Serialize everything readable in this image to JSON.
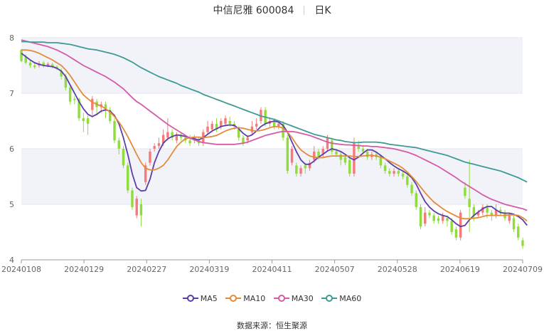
{
  "header": {
    "title": "中信尼雅 600084",
    "period": "日K"
  },
  "source": {
    "label": "数据来源：",
    "value": "恒生聚源"
  },
  "colors": {
    "up": "#f57a7a",
    "down": "#8fdc3c",
    "ma5": "#5b3ea8",
    "ma10": "#e38b3a",
    "ma30": "#d55aa8",
    "ma60": "#3f9a95",
    "band": "#f2f3f9"
  },
  "chart_data": {
    "type": "candlestick",
    "ylim": [
      4,
      8
    ],
    "yticks": [
      "4",
      "5",
      "6",
      "7",
      "8"
    ],
    "xticks": [
      "20240108",
      "20240129",
      "20240227",
      "20240319",
      "20240411",
      "20240507",
      "20240528",
      "20240619",
      "20240709"
    ],
    "candles": [
      [
        7.78,
        7.58,
        7.8,
        7.56
      ],
      [
        7.65,
        7.55,
        7.7,
        7.52
      ],
      [
        7.55,
        7.5,
        7.6,
        7.46
      ],
      [
        7.5,
        7.47,
        7.55,
        7.44
      ],
      [
        7.5,
        7.54,
        7.58,
        7.46
      ],
      [
        7.55,
        7.5,
        7.58,
        7.46
      ],
      [
        7.5,
        7.53,
        7.56,
        7.47
      ],
      [
        7.52,
        7.48,
        7.55,
        7.45
      ],
      [
        7.48,
        7.45,
        7.5,
        7.42
      ],
      [
        7.4,
        7.3,
        7.45,
        7.25
      ],
      [
        7.3,
        7.1,
        7.35,
        7.05
      ],
      [
        7.1,
        6.85,
        7.15,
        6.8
      ],
      [
        6.9,
        6.88,
        6.95,
        6.8
      ],
      [
        6.9,
        6.55,
        6.92,
        6.5
      ],
      [
        6.55,
        6.5,
        6.65,
        6.3
      ],
      [
        6.55,
        6.45,
        6.6,
        6.25
      ],
      [
        6.7,
        6.9,
        6.95,
        6.6
      ],
      [
        6.85,
        6.75,
        6.9,
        6.6
      ],
      [
        6.75,
        6.8,
        6.85,
        6.65
      ],
      [
        6.8,
        6.7,
        6.85,
        6.55
      ],
      [
        6.7,
        6.5,
        6.75,
        6.45
      ],
      [
        6.5,
        6.15,
        6.55,
        6.1
      ],
      [
        6.15,
        6.0,
        6.2,
        5.9
      ],
      [
        6.0,
        5.7,
        6.05,
        5.65
      ],
      [
        5.7,
        5.25,
        5.75,
        5.2
      ],
      [
        5.25,
        4.95,
        5.3,
        4.9
      ],
      [
        4.8,
        5.1,
        5.15,
        4.75
      ],
      [
        5.0,
        4.8,
        5.1,
        4.6
      ],
      [
        5.4,
        5.7,
        5.75,
        5.35
      ],
      [
        5.75,
        5.95,
        6.0,
        5.7
      ],
      [
        6.0,
        6.05,
        6.1,
        5.95
      ],
      [
        6.05,
        6.1,
        6.2,
        6.0
      ],
      [
        6.1,
        6.25,
        6.35,
        6.05
      ],
      [
        6.2,
        6.3,
        6.55,
        6.15
      ],
      [
        6.3,
        6.2,
        6.35,
        6.15
      ],
      [
        6.15,
        6.25,
        6.3,
        6.1
      ],
      [
        6.25,
        6.2,
        6.3,
        6.15
      ],
      [
        6.2,
        6.15,
        6.25,
        6.1
      ],
      [
        6.15,
        6.1,
        6.25,
        6.05
      ],
      [
        6.15,
        6.2,
        6.25,
        6.1
      ],
      [
        6.15,
        6.1,
        6.2,
        6.05
      ],
      [
        6.1,
        6.3,
        6.35,
        6.05
      ],
      [
        6.3,
        6.4,
        6.5,
        6.25
      ],
      [
        6.35,
        6.45,
        6.5,
        6.3
      ],
      [
        6.45,
        6.35,
        6.55,
        6.3
      ],
      [
        6.4,
        6.5,
        6.55,
        6.35
      ],
      [
        6.45,
        6.55,
        6.6,
        6.4
      ],
      [
        6.5,
        6.45,
        6.58,
        6.4
      ],
      [
        6.45,
        6.4,
        6.5,
        6.35
      ],
      [
        6.35,
        6.2,
        6.4,
        6.15
      ],
      [
        6.2,
        6.1,
        6.25,
        6.05
      ],
      [
        6.15,
        6.2,
        6.25,
        6.1
      ],
      [
        6.3,
        6.4,
        6.5,
        6.25
      ],
      [
        6.4,
        6.45,
        6.55,
        6.35
      ],
      [
        6.5,
        6.7,
        6.75,
        6.45
      ],
      [
        6.7,
        6.45,
        6.75,
        6.4
      ],
      [
        6.45,
        6.5,
        6.55,
        6.4
      ],
      [
        6.5,
        6.4,
        6.55,
        6.35
      ],
      [
        6.4,
        6.45,
        6.5,
        6.35
      ],
      [
        6.45,
        6.2,
        6.5,
        6.15
      ],
      [
        6.2,
        5.6,
        6.25,
        5.55
      ],
      [
        5.75,
        6.0,
        6.05,
        5.7
      ],
      [
        5.7,
        5.55,
        5.75,
        5.5
      ],
      [
        5.55,
        5.65,
        5.7,
        5.5
      ],
      [
        5.7,
        5.65,
        5.75,
        5.55
      ],
      [
        5.65,
        5.75,
        5.8,
        5.6
      ],
      [
        5.8,
        5.95,
        6.05,
        5.75
      ],
      [
        5.95,
        5.85,
        6.0,
        5.8
      ],
      [
        5.9,
        6.0,
        6.05,
        5.85
      ],
      [
        6.0,
        6.2,
        6.25,
        5.95
      ],
      [
        6.15,
        5.95,
        6.2,
        5.9
      ],
      [
        5.95,
        5.9,
        6.0,
        5.85
      ],
      [
        5.9,
        5.8,
        5.95,
        5.7
      ],
      [
        5.85,
        5.75,
        5.9,
        5.7
      ],
      [
        5.8,
        5.55,
        5.85,
        5.5
      ],
      [
        5.55,
        6.1,
        6.2,
        5.5
      ],
      [
        6.05,
        6.0,
        6.15,
        5.95
      ],
      [
        6.0,
        5.95,
        6.05,
        5.9
      ],
      [
        5.95,
        5.85,
        6.0,
        5.8
      ],
      [
        5.85,
        5.9,
        5.95,
        5.8
      ],
      [
        5.9,
        5.85,
        5.95,
        5.8
      ],
      [
        5.85,
        5.7,
        5.9,
        5.65
      ],
      [
        5.7,
        5.6,
        5.75,
        5.55
      ],
      [
        5.6,
        5.55,
        5.65,
        5.5
      ],
      [
        5.55,
        5.6,
        5.65,
        5.5
      ],
      [
        5.6,
        5.55,
        5.65,
        5.5
      ],
      [
        5.55,
        5.5,
        5.6,
        5.45
      ],
      [
        5.5,
        5.35,
        5.55,
        5.3
      ],
      [
        5.35,
        5.2,
        5.4,
        5.15
      ],
      [
        5.2,
        4.95,
        5.25,
        4.9
      ],
      [
        4.95,
        4.6,
        5.0,
        4.55
      ],
      [
        4.65,
        4.85,
        4.95,
        4.6
      ],
      [
        4.85,
        4.8,
        4.9,
        4.75
      ],
      [
        4.8,
        4.7,
        4.85,
        4.65
      ],
      [
        4.75,
        4.7,
        4.8,
        4.65
      ],
      [
        4.7,
        4.8,
        4.85,
        4.65
      ],
      [
        4.75,
        4.7,
        4.8,
        4.6
      ],
      [
        4.7,
        4.5,
        4.75,
        4.45
      ],
      [
        4.55,
        4.4,
        4.6,
        4.35
      ],
      [
        4.4,
        4.85,
        4.9,
        4.35
      ],
      [
        5.3,
        5.15,
        5.4,
        5.1
      ],
      [
        5.1,
        4.95,
        5.8,
        4.5
      ],
      [
        4.95,
        4.8,
        5.0,
        4.7
      ],
      [
        4.8,
        4.85,
        4.9,
        4.75
      ],
      [
        4.85,
        4.95,
        5.0,
        4.8
      ],
      [
        4.95,
        4.85,
        5.0,
        4.75
      ],
      [
        4.85,
        4.8,
        4.9,
        4.7
      ],
      [
        4.8,
        4.9,
        5.0,
        4.75
      ],
      [
        4.9,
        4.85,
        4.95,
        4.8
      ],
      [
        4.85,
        4.75,
        4.9,
        4.7
      ],
      [
        4.7,
        4.8,
        4.85,
        4.65
      ],
      [
        4.75,
        4.55,
        4.8,
        4.5
      ],
      [
        4.6,
        4.4,
        4.65,
        4.35
      ],
      [
        4.35,
        4.25,
        4.4,
        4.2
      ]
    ],
    "series": [
      {
        "name": "MA5",
        "color": "#5b3ea8",
        "values": [
          7.72,
          7.66,
          7.6,
          7.55,
          7.52,
          7.5,
          7.49,
          7.48,
          7.45,
          7.4,
          7.3,
          7.15,
          7.0,
          6.85,
          6.72,
          6.62,
          6.58,
          6.62,
          6.68,
          6.7,
          6.68,
          6.6,
          6.45,
          6.2,
          5.9,
          5.55,
          5.3,
          5.24,
          5.25,
          5.45,
          5.75,
          5.95,
          6.1,
          6.18,
          6.22,
          6.25,
          6.24,
          6.22,
          6.2,
          6.18,
          6.16,
          6.2,
          6.26,
          6.32,
          6.36,
          6.4,
          6.42,
          6.43,
          6.42,
          6.36,
          6.28,
          6.22,
          6.25,
          6.32,
          6.4,
          6.45,
          6.48,
          6.5,
          6.48,
          6.42,
          6.3,
          6.12,
          5.95,
          5.8,
          5.72,
          5.72,
          5.78,
          5.85,
          5.9,
          5.96,
          6.0,
          5.98,
          5.95,
          5.9,
          5.84,
          5.8,
          5.85,
          5.92,
          5.98,
          5.98,
          5.94,
          5.88,
          5.82,
          5.75,
          5.69,
          5.64,
          5.6,
          5.55,
          5.48,
          5.36,
          5.2,
          5.05,
          4.95,
          4.88,
          4.83,
          4.8,
          4.78,
          4.72,
          4.65,
          4.6,
          4.62,
          4.72,
          4.8,
          4.86,
          4.92,
          4.96,
          4.96,
          4.9,
          4.85,
          4.84,
          4.84,
          4.82,
          4.78,
          4.72,
          4.62
        ]
      },
      {
        "name": "MA10",
        "color": "#e38b3a",
        "values": [
          7.78,
          7.78,
          7.77,
          7.75,
          7.72,
          7.68,
          7.64,
          7.6,
          7.55,
          7.5,
          7.42,
          7.32,
          7.2,
          7.08,
          6.97,
          6.9,
          6.84,
          6.8,
          6.77,
          6.72,
          6.66,
          6.58,
          6.48,
          6.36,
          6.22,
          6.06,
          5.9,
          5.75,
          5.65,
          5.62,
          5.62,
          5.65,
          5.7,
          5.8,
          5.92,
          6.04,
          6.12,
          6.18,
          6.2,
          6.21,
          6.21,
          6.2,
          6.21,
          6.22,
          6.24,
          6.28,
          6.32,
          6.35,
          6.37,
          6.38,
          6.37,
          6.35,
          6.33,
          6.32,
          6.33,
          6.35,
          6.38,
          6.4,
          6.4,
          6.37,
          6.3,
          6.2,
          6.08,
          5.98,
          5.92,
          5.87,
          5.85,
          5.84,
          5.84,
          5.86,
          5.87,
          5.87,
          5.87,
          5.87,
          5.87,
          5.86,
          5.86,
          5.87,
          5.88,
          5.88,
          5.87,
          5.85,
          5.82,
          5.78,
          5.74,
          5.7,
          5.65,
          5.58,
          5.5,
          5.41,
          5.31,
          5.21,
          5.12,
          5.04,
          4.98,
          4.92,
          4.87,
          4.83,
          4.79,
          4.75,
          4.74,
          4.74,
          4.75,
          4.76,
          4.78,
          4.8,
          4.8,
          4.8,
          4.8,
          4.8,
          4.81,
          4.81,
          4.8,
          4.76,
          4.7
        ]
      },
      {
        "name": "MA30",
        "color": "#d55aa8",
        "values": [
          7.96,
          7.94,
          7.92,
          7.9,
          7.88,
          7.86,
          7.84,
          7.81,
          7.78,
          7.74,
          7.7,
          7.65,
          7.6,
          7.55,
          7.5,
          7.46,
          7.42,
          7.38,
          7.34,
          7.3,
          7.25,
          7.2,
          7.14,
          7.08,
          7.0,
          6.92,
          6.85,
          6.8,
          6.74,
          6.68,
          6.62,
          6.56,
          6.5,
          6.44,
          6.39,
          6.34,
          6.29,
          6.24,
          6.19,
          6.16,
          6.13,
          6.11,
          6.1,
          6.09,
          6.08,
          6.08,
          6.08,
          6.08,
          6.08,
          6.09,
          6.1,
          6.12,
          6.15,
          6.18,
          6.21,
          6.24,
          6.26,
          6.28,
          6.3,
          6.31,
          6.31,
          6.31,
          6.3,
          6.28,
          6.26,
          6.24,
          6.21,
          6.18,
          6.15,
          6.12,
          6.1,
          6.09,
          6.08,
          6.07,
          6.07,
          6.06,
          6.06,
          6.05,
          6.05,
          6.04,
          6.04,
          6.03,
          6.02,
          6.01,
          6.0,
          5.98,
          5.96,
          5.94,
          5.91,
          5.88,
          5.84,
          5.8,
          5.76,
          5.72,
          5.68,
          5.63,
          5.58,
          5.53,
          5.48,
          5.42,
          5.37,
          5.32,
          5.27,
          5.22,
          5.17,
          5.13,
          5.09,
          5.06,
          5.03,
          5.0,
          4.98,
          4.96,
          4.94,
          4.92,
          4.89
        ]
      },
      {
        "name": "MA60",
        "color": "#3f9a95",
        "values": [
          7.93,
          7.93,
          7.92,
          7.92,
          7.92,
          7.92,
          7.91,
          7.91,
          7.91,
          7.9,
          7.89,
          7.88,
          7.86,
          7.84,
          7.82,
          7.8,
          7.79,
          7.78,
          7.76,
          7.74,
          7.72,
          7.7,
          7.67,
          7.64,
          7.6,
          7.56,
          7.51,
          7.46,
          7.42,
          7.38,
          7.34,
          7.3,
          7.27,
          7.24,
          7.21,
          7.18,
          7.14,
          7.11,
          7.08,
          7.05,
          7.02,
          6.98,
          6.95,
          6.92,
          6.89,
          6.86,
          6.83,
          6.8,
          6.77,
          6.74,
          6.71,
          6.68,
          6.65,
          6.62,
          6.59,
          6.57,
          6.55,
          6.53,
          6.5,
          6.47,
          6.44,
          6.41,
          6.38,
          6.35,
          6.32,
          6.29,
          6.26,
          6.24,
          6.22,
          6.2,
          6.18,
          6.16,
          6.15,
          6.13,
          6.12,
          6.11,
          6.11,
          6.12,
          6.12,
          6.12,
          6.12,
          6.11,
          6.1,
          6.08,
          6.07,
          6.06,
          6.05,
          6.04,
          6.03,
          6.02,
          6.0,
          5.98,
          5.96,
          5.94,
          5.92,
          5.9,
          5.88,
          5.85,
          5.82,
          5.79,
          5.76,
          5.74,
          5.72,
          5.7,
          5.68,
          5.66,
          5.64,
          5.62,
          5.6,
          5.57,
          5.54,
          5.51,
          5.48,
          5.44,
          5.4
        ]
      }
    ]
  }
}
